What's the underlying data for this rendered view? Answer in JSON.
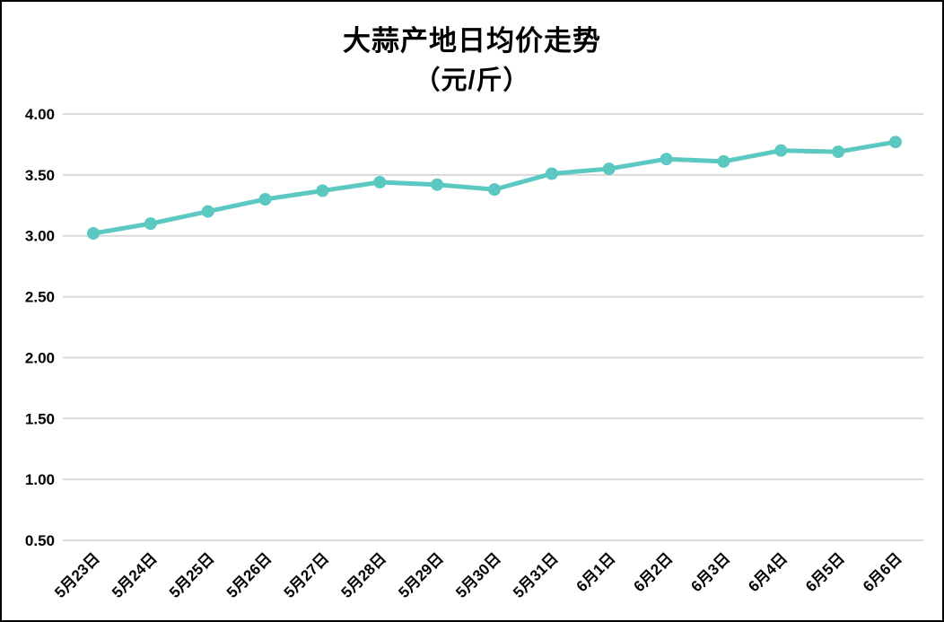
{
  "chart": {
    "title": "大蒜产地日均价走势",
    "subtitle": "（元/斤）"
  },
  "chart_data": {
    "type": "line",
    "title": "大蒜产地日均价走势",
    "subtitle": "（元/斤）",
    "categories": [
      "5月23日",
      "5月24日",
      "5月25日",
      "5月26日",
      "5月27日",
      "5月28日",
      "5月29日",
      "5月30日",
      "5月31日",
      "6月1日",
      "6月2日",
      "6月3日",
      "6月4日",
      "6月5日",
      "6月6日"
    ],
    "values": [
      3.02,
      3.1,
      3.2,
      3.3,
      3.37,
      3.44,
      3.42,
      3.38,
      3.51,
      3.55,
      3.63,
      3.61,
      3.7,
      3.69,
      3.77
    ],
    "xlabel": "",
    "ylabel": "",
    "ylim": [
      0.5,
      4.0
    ],
    "y_ticks": [
      "4.00",
      "3.50",
      "3.00",
      "2.50",
      "2.00",
      "1.50",
      "1.00",
      "0.50"
    ],
    "x_label_rotation_deg": -45,
    "grid": "horizontal-only",
    "legend": "none",
    "marker": "circle",
    "colors": {
      "line": "#5bc8c1",
      "marker": "#5bc8c1",
      "gridline": "#d9d9d9",
      "text": "#000000",
      "background": "#ffffff",
      "border": "#000000"
    }
  }
}
